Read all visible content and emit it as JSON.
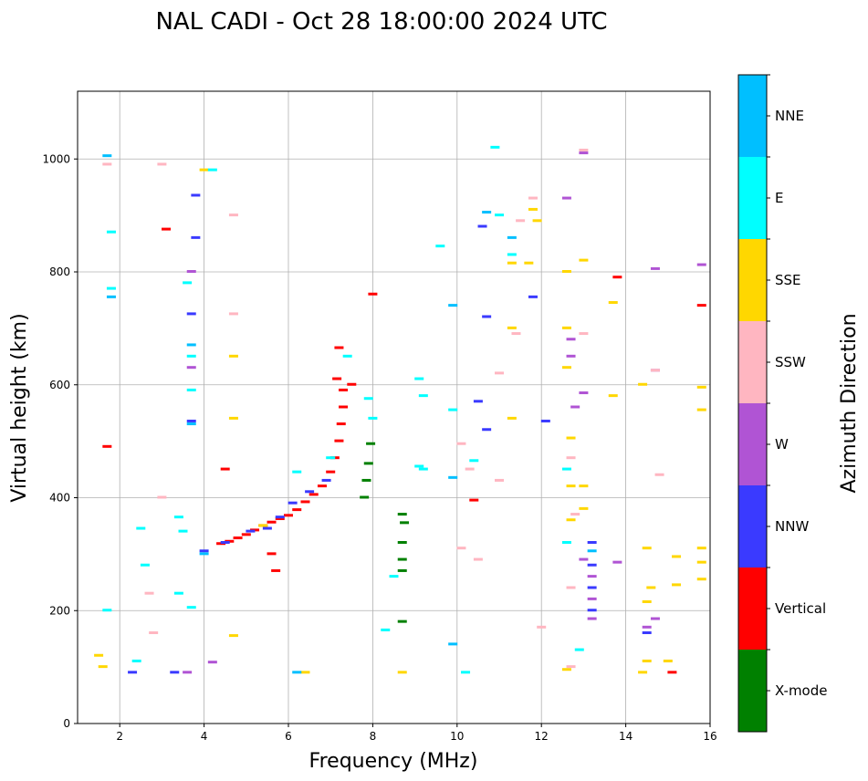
{
  "chart_data": {
    "type": "scatter",
    "title": "NAL CADI - Oct 28 18:00:00 2024 UTC",
    "xlabel": "Frequency (MHz)",
    "ylabel": "Virtual height (km)",
    "xlim": [
      1,
      16
    ],
    "ylim": [
      0,
      1120
    ],
    "xticks": [
      "2",
      "4",
      "6",
      "8",
      "10",
      "12",
      "14",
      "16"
    ],
    "yticks": [
      "0",
      "200",
      "400",
      "600",
      "800",
      "1000"
    ],
    "grid": true,
    "colorbar": {
      "label": "Azimuth Direction",
      "categories": [
        {
          "name": "X-mode",
          "color": "#008000"
        },
        {
          "name": "Vertical",
          "color": "#ff0000"
        },
        {
          "name": "NNW",
          "color": "#3a3aff"
        },
        {
          "name": "W",
          "color": "#b054d4"
        },
        {
          "name": "SSW",
          "color": "#ffb6c1"
        },
        {
          "name": "SSE",
          "color": "#ffd700"
        },
        {
          "name": "E",
          "color": "#00ffff"
        },
        {
          "name": "NNE",
          "color": "#00bfff"
        }
      ]
    },
    "series": [
      {
        "name": "Vertical",
        "points": [
          [
            4.4,
            318
          ],
          [
            4.6,
            322
          ],
          [
            4.8,
            328
          ],
          [
            5.0,
            334
          ],
          [
            5.2,
            342
          ],
          [
            5.4,
            350
          ],
          [
            5.6,
            356
          ],
          [
            5.8,
            362
          ],
          [
            6.0,
            368
          ],
          [
            6.2,
            378
          ],
          [
            6.4,
            392
          ],
          [
            6.6,
            405
          ],
          [
            6.8,
            420
          ],
          [
            7.0,
            445
          ],
          [
            7.1,
            470
          ],
          [
            7.2,
            500
          ],
          [
            7.25,
            530
          ],
          [
            7.3,
            560
          ],
          [
            7.3,
            590
          ],
          [
            7.15,
            610
          ],
          [
            7.2,
            665
          ],
          [
            8.0,
            760
          ],
          [
            7.5,
            600
          ],
          [
            5.6,
            300
          ],
          [
            5.7,
            270
          ],
          [
            4.5,
            450
          ],
          [
            3.1,
            875
          ],
          [
            1.7,
            490
          ],
          [
            13.8,
            790
          ],
          [
            15.8,
            740
          ],
          [
            15.1,
            90
          ],
          [
            10.4,
            395
          ]
        ]
      },
      {
        "name": "X-mode",
        "points": [
          [
            7.8,
            400
          ],
          [
            7.85,
            430
          ],
          [
            7.9,
            460
          ],
          [
            7.95,
            495
          ],
          [
            8.7,
            180
          ],
          [
            8.7,
            270
          ],
          [
            8.7,
            290
          ],
          [
            8.7,
            320
          ],
          [
            8.75,
            355
          ],
          [
            8.7,
            370
          ]
        ]
      },
      {
        "name": "NNW",
        "points": [
          [
            4.0,
            305
          ],
          [
            4.5,
            320
          ],
          [
            5.1,
            340
          ],
          [
            5.5,
            345
          ],
          [
            5.8,
            365
          ],
          [
            6.1,
            390
          ],
          [
            6.5,
            410
          ],
          [
            6.9,
            430
          ],
          [
            3.7,
            535
          ],
          [
            3.7,
            725
          ],
          [
            3.8,
            860
          ],
          [
            3.8,
            935
          ],
          [
            2.3,
            90
          ],
          [
            3.3,
            90
          ],
          [
            10.7,
            720
          ],
          [
            10.6,
            880
          ],
          [
            10.5,
            570
          ],
          [
            10.7,
            520
          ],
          [
            11.8,
            755
          ],
          [
            12.1,
            535
          ],
          [
            13.2,
            200
          ],
          [
            13.2,
            320
          ],
          [
            13.2,
            280
          ],
          [
            13.2,
            240
          ],
          [
            14.5,
            160
          ]
        ]
      },
      {
        "name": "W",
        "points": [
          [
            3.7,
            800
          ],
          [
            3.7,
            630
          ],
          [
            4.2,
            108
          ],
          [
            3.6,
            90
          ],
          [
            12.7,
            680
          ],
          [
            12.7,
            650
          ],
          [
            12.8,
            560
          ],
          [
            13.0,
            585
          ],
          [
            13.0,
            290
          ],
          [
            13.2,
            260
          ],
          [
            13.2,
            220
          ],
          [
            13.2,
            185
          ],
          [
            13.8,
            285
          ],
          [
            14.5,
            170
          ],
          [
            14.7,
            805
          ],
          [
            14.7,
            625
          ],
          [
            14.7,
            185
          ],
          [
            15.8,
            812
          ],
          [
            13.0,
            1010
          ],
          [
            12.6,
            930
          ]
        ]
      },
      {
        "name": "SSW",
        "points": [
          [
            1.7,
            990
          ],
          [
            3.0,
            990
          ],
          [
            4.7,
            900
          ],
          [
            4.7,
            725
          ],
          [
            3.0,
            400
          ],
          [
            2.8,
            160
          ],
          [
            2.7,
            230
          ],
          [
            10.1,
            495
          ],
          [
            10.3,
            450
          ],
          [
            10.1,
            310
          ],
          [
            10.5,
            290
          ],
          [
            11.0,
            430
          ],
          [
            11.0,
            620
          ],
          [
            11.4,
            690
          ],
          [
            11.8,
            930
          ],
          [
            11.5,
            890
          ],
          [
            12.7,
            470
          ],
          [
            12.8,
            370
          ],
          [
            12.7,
            240
          ],
          [
            12.7,
            100
          ],
          [
            14.7,
            625
          ],
          [
            14.8,
            440
          ],
          [
            13.0,
            690
          ],
          [
            13.0,
            1015
          ],
          [
            12.0,
            170
          ]
        ]
      },
      {
        "name": "SSE",
        "points": [
          [
            1.6,
            100
          ],
          [
            1.5,
            120
          ],
          [
            4.0,
            980
          ],
          [
            4.7,
            650
          ],
          [
            4.7,
            540
          ],
          [
            4.7,
            155
          ],
          [
            5.4,
            350
          ],
          [
            6.4,
            90
          ],
          [
            8.7,
            90
          ],
          [
            11.3,
            540
          ],
          [
            11.3,
            700
          ],
          [
            11.3,
            815
          ],
          [
            11.8,
            910
          ],
          [
            11.7,
            815
          ],
          [
            12.6,
            800
          ],
          [
            12.6,
            700
          ],
          [
            12.6,
            630
          ],
          [
            12.7,
            505
          ],
          [
            12.7,
            360
          ],
          [
            12.7,
            420
          ],
          [
            13.0,
            420
          ],
          [
            13.0,
            380
          ],
          [
            13.0,
            820
          ],
          [
            13.7,
            745
          ],
          [
            13.7,
            580
          ],
          [
            14.4,
            600
          ],
          [
            14.5,
            310
          ],
          [
            14.6,
            240
          ],
          [
            14.5,
            215
          ],
          [
            14.5,
            110
          ],
          [
            14.4,
            90
          ],
          [
            15.2,
            295
          ],
          [
            15.2,
            245
          ],
          [
            15.0,
            110
          ],
          [
            15.8,
            595
          ],
          [
            15.8,
            555
          ],
          [
            15.8,
            310
          ],
          [
            15.8,
            285
          ],
          [
            15.8,
            255
          ],
          [
            11.9,
            890
          ],
          [
            12.6,
            95
          ]
        ]
      },
      {
        "name": "E",
        "points": [
          [
            1.8,
            770
          ],
          [
            1.8,
            870
          ],
          [
            3.6,
            780
          ],
          [
            3.7,
            650
          ],
          [
            3.7,
            590
          ],
          [
            3.7,
            205
          ],
          [
            3.4,
            230
          ],
          [
            3.4,
            365
          ],
          [
            3.5,
            340
          ],
          [
            2.6,
            280
          ],
          [
            2.5,
            345
          ],
          [
            2.4,
            110
          ],
          [
            4.2,
            980
          ],
          [
            6.2,
            445
          ],
          [
            7.0,
            470
          ],
          [
            7.4,
            650
          ],
          [
            7.9,
            575
          ],
          [
            8.0,
            540
          ],
          [
            9.1,
            610
          ],
          [
            9.2,
            580
          ],
          [
            9.2,
            450
          ],
          [
            9.1,
            455
          ],
          [
            9.6,
            845
          ],
          [
            9.9,
            555
          ],
          [
            10.4,
            465
          ],
          [
            10.9,
            1020
          ],
          [
            11.3,
            830
          ],
          [
            11.0,
            900
          ],
          [
            12.6,
            320
          ],
          [
            12.6,
            450
          ],
          [
            12.9,
            130
          ],
          [
            8.5,
            260
          ],
          [
            8.3,
            165
          ],
          [
            10.2,
            90
          ],
          [
            1.7,
            200
          ]
        ]
      },
      {
        "name": "NNE",
        "points": [
          [
            1.7,
            1005
          ],
          [
            1.8,
            755
          ],
          [
            3.7,
            670
          ],
          [
            3.7,
            530
          ],
          [
            4.0,
            300
          ],
          [
            6.2,
            90
          ],
          [
            9.9,
            740
          ],
          [
            9.9,
            435
          ],
          [
            9.9,
            140
          ],
          [
            10.7,
            905
          ],
          [
            11.3,
            860
          ],
          [
            13.2,
            305
          ]
        ]
      }
    ]
  }
}
